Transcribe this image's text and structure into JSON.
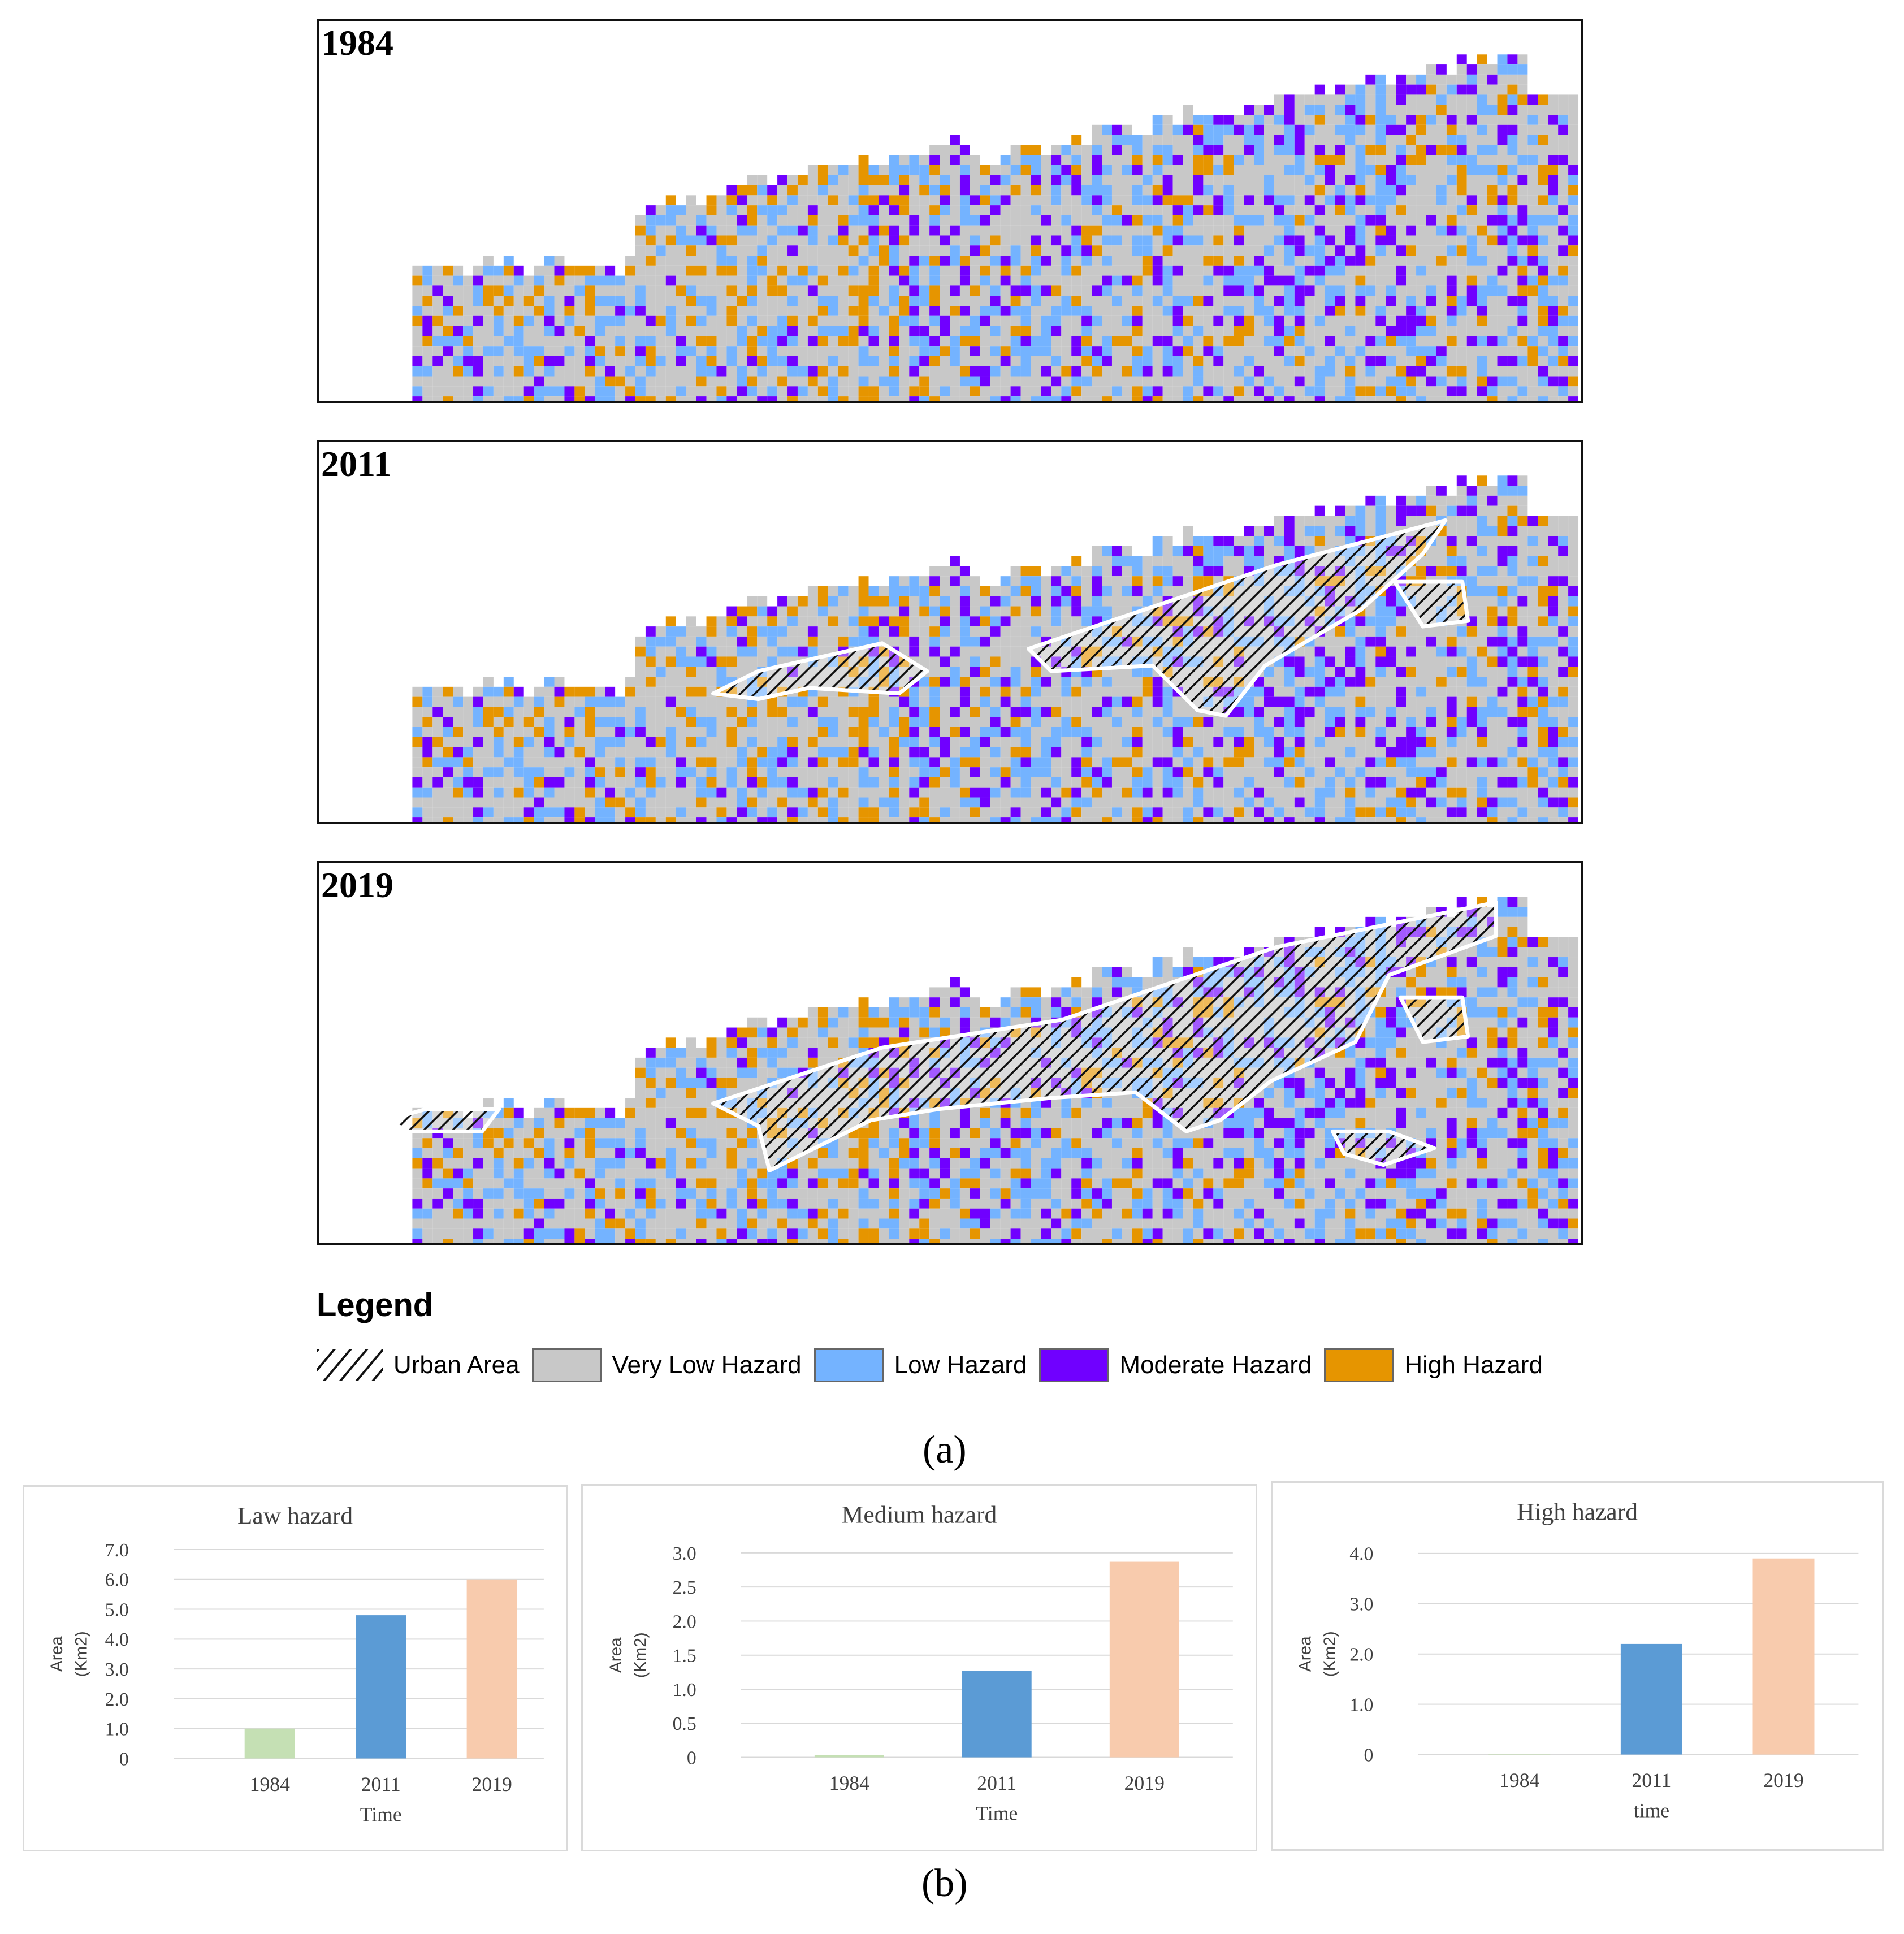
{
  "maps": [
    {
      "year": "1984"
    },
    {
      "year": "2011"
    },
    {
      "year": "2019"
    }
  ],
  "legend": {
    "title": "Legend",
    "items": [
      {
        "label": "Urban Area",
        "color": "hatch"
      },
      {
        "label": "Very Low Hazard",
        "color": "#c8c8c8"
      },
      {
        "label": "Low Hazard",
        "color": "#74b3ff"
      },
      {
        "label": "Moderate Hazard",
        "color": "#7000ff"
      },
      {
        "label": "High Hazard",
        "color": "#e69500"
      }
    ]
  },
  "captions": {
    "a": "(a)",
    "b": "(b)"
  },
  "chart_data": [
    {
      "type": "bar",
      "title": "Law hazard",
      "categories": [
        "1984",
        "2011",
        "2019"
      ],
      "values": [
        1.0,
        4.8,
        6.0
      ],
      "colors": [
        "#c5e0b4",
        "#5b9bd5",
        "#f8cbad"
      ],
      "xlabel": "Time",
      "ylabel_line1": "Area",
      "ylabel_line2": "(Km2)",
      "ylim": [
        0,
        7
      ],
      "yticks": [
        0,
        1,
        2,
        3,
        4,
        5,
        6,
        7
      ],
      "ytick_labels": [
        "0",
        "1.0",
        "2.0",
        "3.0",
        "4.0",
        "5.0",
        "6.0",
        "7.0"
      ],
      "grid": true
    },
    {
      "type": "bar",
      "title": "Medium  hazard",
      "categories": [
        "1984",
        "2011",
        "2019"
      ],
      "values": [
        0.03,
        1.27,
        2.87
      ],
      "colors": [
        "#c5e0b4",
        "#5b9bd5",
        "#f8cbad"
      ],
      "xlabel": "Time",
      "ylabel_line1": "Area",
      "ylabel_line2": "(Km2)",
      "ylim": [
        0,
        3
      ],
      "yticks": [
        0,
        0.5,
        1,
        1.5,
        2,
        2.5,
        3
      ],
      "ytick_labels": [
        "0",
        "0.5",
        "1.0",
        "1.5",
        "2.0",
        "2.5",
        "3.0"
      ],
      "grid": true
    },
    {
      "type": "bar",
      "title": "High hazard",
      "categories": [
        "1984",
        "2011",
        "2019"
      ],
      "values": [
        0.0,
        2.2,
        3.9
      ],
      "colors": [
        "#c5e0b4",
        "#5b9bd5",
        "#f8cbad"
      ],
      "xlabel": "time",
      "ylabel_line1": "Area",
      "ylabel_line2": "(Km2)",
      "ylim": [
        0,
        4
      ],
      "yticks": [
        0,
        1,
        2,
        3,
        4
      ],
      "ytick_labels": [
        "0",
        "1.0",
        "2.0",
        "3.0",
        "4.0"
      ],
      "grid": true
    }
  ]
}
